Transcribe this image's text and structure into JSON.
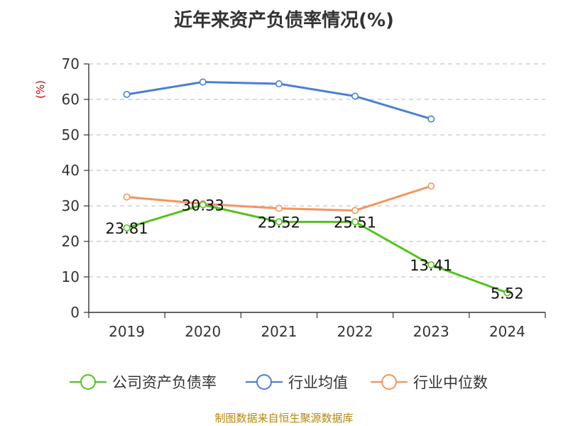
{
  "chart_data": {
    "type": "line",
    "title": "近年来资产负债率情况(%)",
    "ylabel": "(%)",
    "categories": [
      "2019",
      "2020",
      "2021",
      "2022",
      "2023",
      "2024"
    ],
    "ylim": [
      0,
      70
    ],
    "yticks": [
      0,
      10,
      20,
      30,
      40,
      50,
      60,
      70
    ],
    "grid": "horizontal-dashed",
    "legend_position": "bottom",
    "series": [
      {
        "name": "公司资产负债率",
        "color": "#52c41a",
        "values": [
          23.81,
          30.33,
          25.52,
          25.51,
          13.41,
          5.52
        ],
        "labels": [
          "23.81",
          "30.33",
          "25.52",
          "25.51",
          "13.41",
          "5.52"
        ]
      },
      {
        "name": "行业均值",
        "color": "#4a7fd4",
        "values": [
          61.4,
          64.9,
          64.4,
          60.9,
          54.5,
          null
        ]
      },
      {
        "name": "行业中位数",
        "color": "#f5945c",
        "values": [
          32.5,
          30.6,
          29.3,
          28.7,
          35.6,
          null
        ]
      }
    ]
  },
  "footer": {
    "source": "制图数据来自恒生聚源数据库"
  }
}
